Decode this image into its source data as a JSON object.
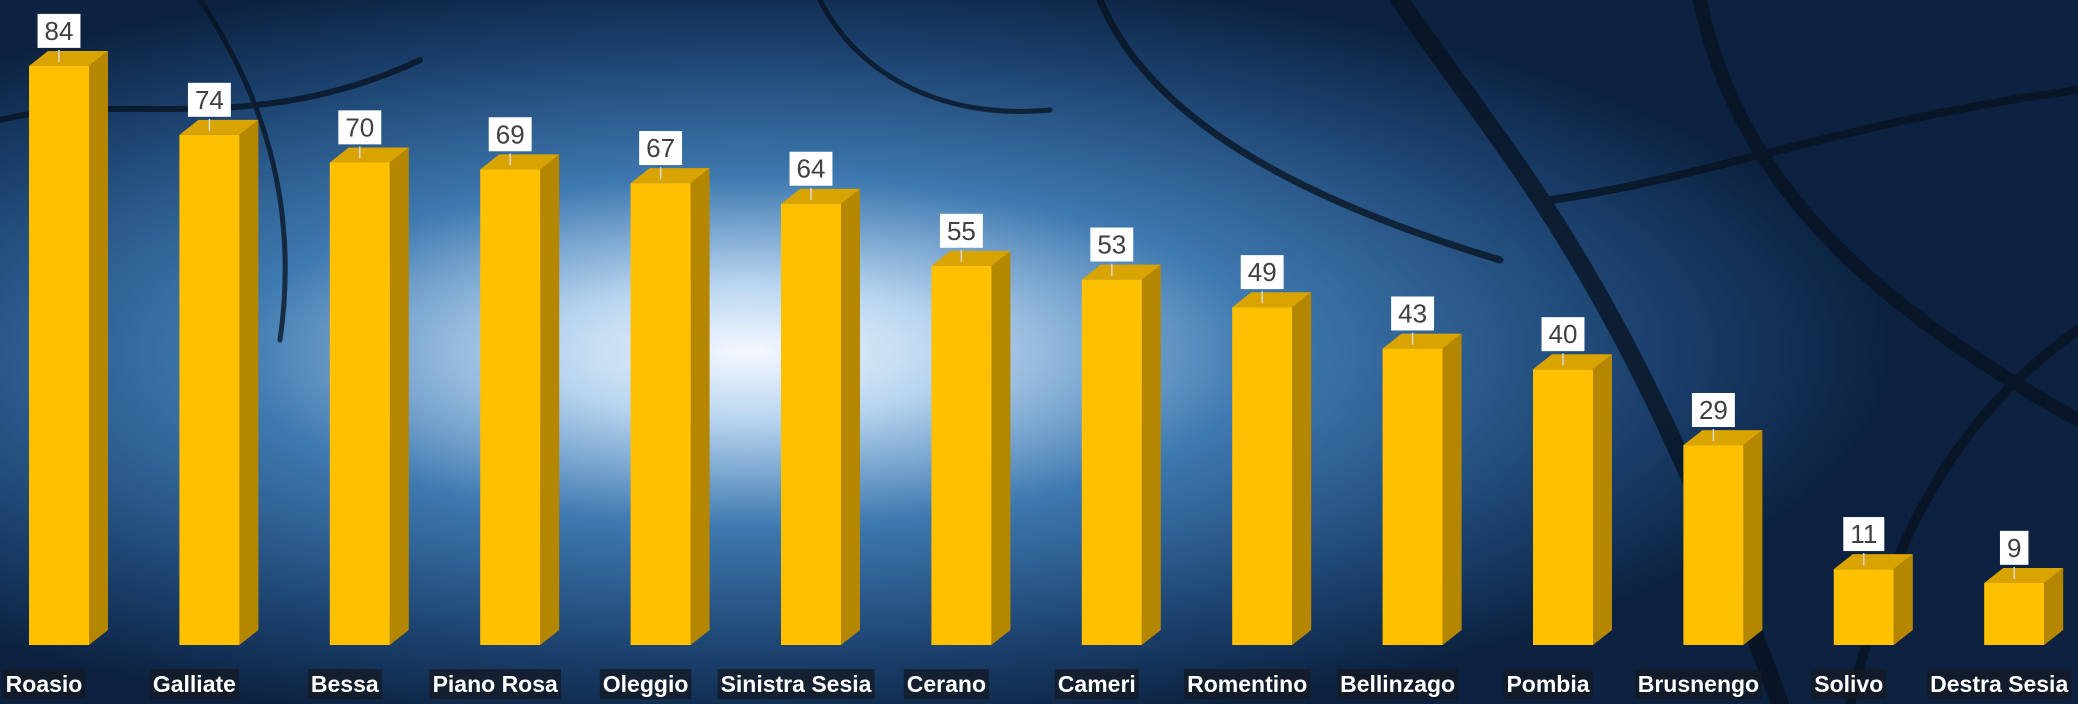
{
  "chart_data": {
    "type": "bar3d",
    "categories": [
      "Roasio",
      "Galliate",
      "Bessa",
      "Piano Rosa",
      "Oleggio",
      "Sinistra Sesia",
      "Cerano",
      "Cameri",
      "Romentino",
      "Bellinzago",
      "Pombia",
      "Brusnengo",
      "Solivo",
      "Destra Sesia"
    ],
    "values": [
      84,
      74,
      70,
      69,
      67,
      64,
      55,
      53,
      49,
      43,
      40,
      29,
      11,
      9
    ],
    "color": "#ffc000"
  }
}
